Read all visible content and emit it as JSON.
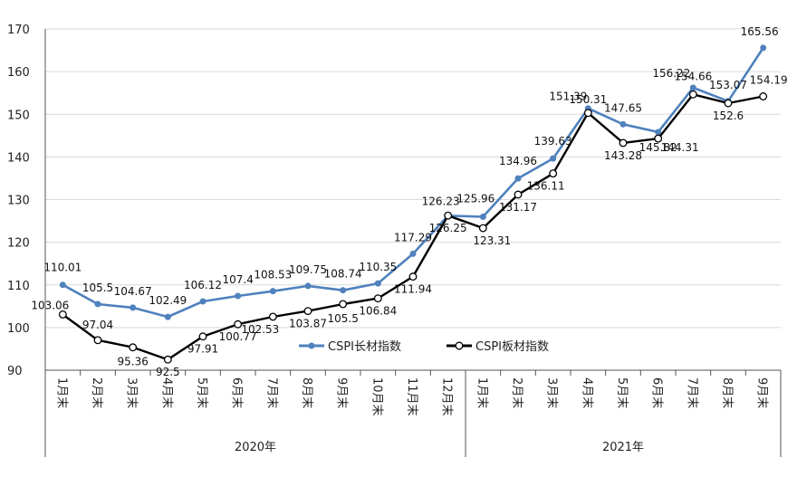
{
  "chart_data": {
    "type": "line",
    "ylim": [
      90,
      170
    ],
    "yticks": [
      90,
      100,
      110,
      120,
      130,
      140,
      150,
      160,
      170
    ],
    "grid": true,
    "legend_placement": "bottom-center",
    "categories": [
      "1月末",
      "2月末",
      "3月末",
      "4月末",
      "5月末",
      "6月末",
      "7月末",
      "8月末",
      "9月末",
      "10月末",
      "11月末",
      "12月末",
      "1月末",
      "2月末",
      "3月末",
      "4月末",
      "5月末",
      "6月末",
      "7月末",
      "8月末",
      "9月末"
    ],
    "groups": [
      {
        "label": "2020年",
        "span": 12
      },
      {
        "label": "2021年",
        "span": 9
      }
    ],
    "series": [
      {
        "name": "CSPI长材指数",
        "color": "#4f81bd",
        "values": [
          110.01,
          105.5,
          104.67,
          102.49,
          106.12,
          107.4,
          108.53,
          109.75,
          108.74,
          110.35,
          117.29,
          126.23,
          125.96,
          134.96,
          139.63,
          151.39,
          147.65,
          145.82,
          156.22,
          153.07,
          165.56
        ],
        "labels": [
          "110.01",
          "105.5",
          "104.67",
          "102.49",
          "106.12",
          "107.4",
          "108.53",
          "109.75",
          "108.74",
          "110.35",
          "117.29",
          "126.23",
          "125.96",
          "134.96",
          "139.63",
          "151.39",
          "147.65",
          "145.82",
          "156.22",
          "153.07",
          "165.56"
        ]
      },
      {
        "name": "CSPI板材指数",
        "color": "#000000",
        "values": [
          103.06,
          97.04,
          95.36,
          92.5,
          97.91,
          100.77,
          102.53,
          103.87,
          105.5,
          106.84,
          111.94,
          126.25,
          123.31,
          131.17,
          136.11,
          150.31,
          143.28,
          144.31,
          154.66,
          152.6,
          154.19
        ],
        "labels": [
          "103.06",
          "97.04",
          "95.36",
          "92.5",
          "97.91",
          "100.77",
          "102.53",
          "103.87",
          "105.5",
          "106.84",
          "111.94",
          "126.25",
          "123.31",
          "131.17",
          "136.11",
          "150.31",
          "143.28",
          "144.31",
          "154.66",
          "152.6",
          "154.19"
        ]
      }
    ]
  }
}
